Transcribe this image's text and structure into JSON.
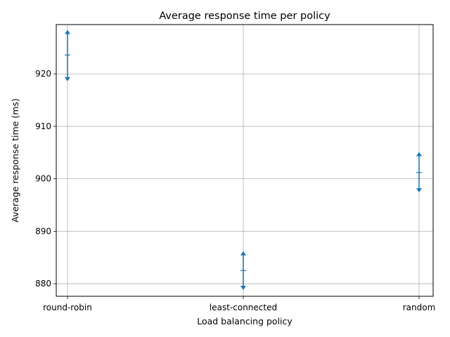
{
  "chart_data": {
    "type": "errorbar",
    "title": "Average response time per policy",
    "xlabel": "Load balancing policy",
    "ylabel": "Average response time (ms)",
    "categories": [
      "round-robin",
      "least-connected",
      "random"
    ],
    "series": [
      {
        "values": [
          923.6,
          882.5,
          901.2
        ],
        "lower": [
          919.0,
          879.2,
          897.8
        ],
        "upper": [
          928.0,
          885.8,
          904.7
        ],
        "color": "#1f77b4"
      }
    ],
    "yticks": [
      880,
      890,
      900,
      910,
      920
    ],
    "ylim": [
      877.6,
      929.4
    ],
    "grid": true,
    "colors": {
      "series": "#1f77b4",
      "grid": "#b0b0b0",
      "axis": "#000000"
    }
  }
}
